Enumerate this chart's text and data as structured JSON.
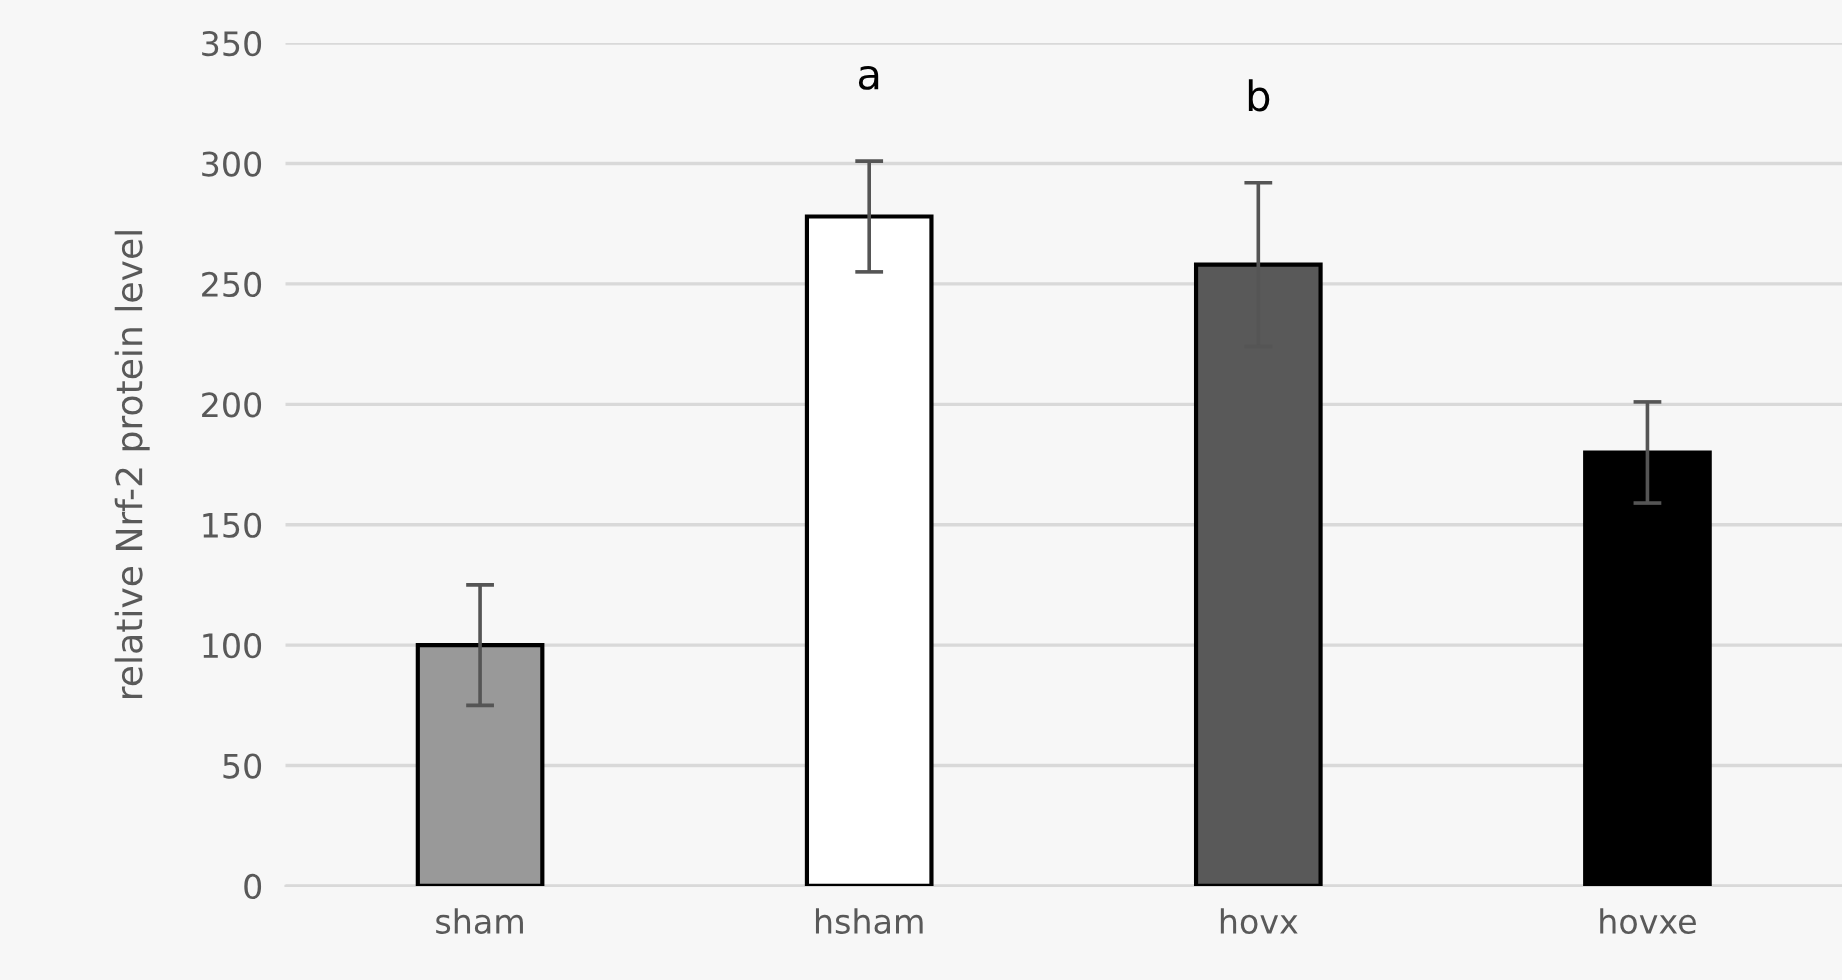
{
  "chart_data": {
    "type": "bar",
    "ylabel": "relative Nrf-2 protein level",
    "categories": [
      "sham",
      "hsham",
      "hovx",
      "hovxe"
    ],
    "values": [
      100,
      278,
      258,
      180
    ],
    "colors": [
      "#999999",
      "#ffffff",
      "#595959",
      "#000000"
    ],
    "errors": [
      25,
      23,
      34,
      21
    ],
    "ylim": [
      0,
      350
    ],
    "yticks": [
      0,
      50,
      100,
      150,
      200,
      250,
      300,
      350
    ],
    "grid": "y",
    "legend": false,
    "annotations": [
      "a",
      "b"
    ]
  }
}
